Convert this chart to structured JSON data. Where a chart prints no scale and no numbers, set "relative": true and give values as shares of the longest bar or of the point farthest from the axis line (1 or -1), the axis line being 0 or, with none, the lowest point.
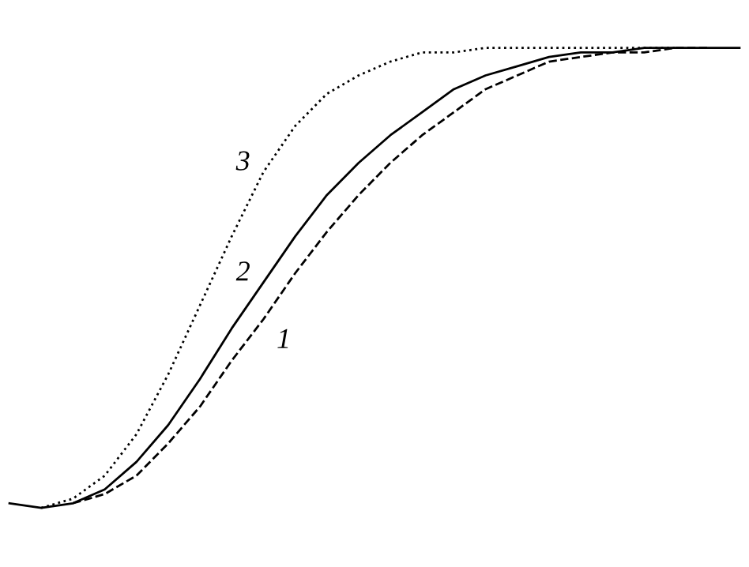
{
  "chart_data": {
    "type": "line",
    "relative": true,
    "categories": [
      null,
      null,
      null,
      null,
      null,
      null,
      null,
      null,
      null,
      null,
      null,
      null,
      null,
      null,
      null,
      null,
      null,
      null,
      null,
      null,
      null,
      null,
      null,
      null
    ],
    "series": [
      {
        "name": "1",
        "color": "#000000",
        "line_style": "dashed",
        "values": [
          null,
          null,
          0.01,
          0.03,
          0.07,
          0.14,
          0.22,
          0.32,
          0.41,
          0.51,
          0.6,
          0.68,
          0.75,
          0.81,
          0.86,
          0.91,
          0.94,
          0.97,
          0.98,
          0.99,
          0.99,
          1.0,
          1,
          null
        ]
      },
      {
        "name": "2",
        "color": "#000000",
        "line_style": "solid",
        "values": [
          0.01,
          0,
          0.01,
          0.04,
          0.1,
          0.18,
          0.28,
          0.39,
          0.49,
          0.59,
          0.68,
          0.75,
          0.81,
          0.86,
          0.91,
          0.94,
          0.96,
          0.98,
          0.99,
          0.99,
          1.0,
          1,
          1,
          1
        ]
      },
      {
        "name": "3",
        "color": "#000000",
        "line_style": "dotted",
        "values": [
          null,
          0,
          0.02,
          0.07,
          0.16,
          0.29,
          0.44,
          0.59,
          0.73,
          0.83,
          0.9,
          0.94,
          0.97,
          0.99,
          0.99,
          1.0,
          1,
          1,
          1,
          1,
          1,
          1,
          null,
          null
        ]
      }
    ],
    "grid": false,
    "legend": false
  }
}
